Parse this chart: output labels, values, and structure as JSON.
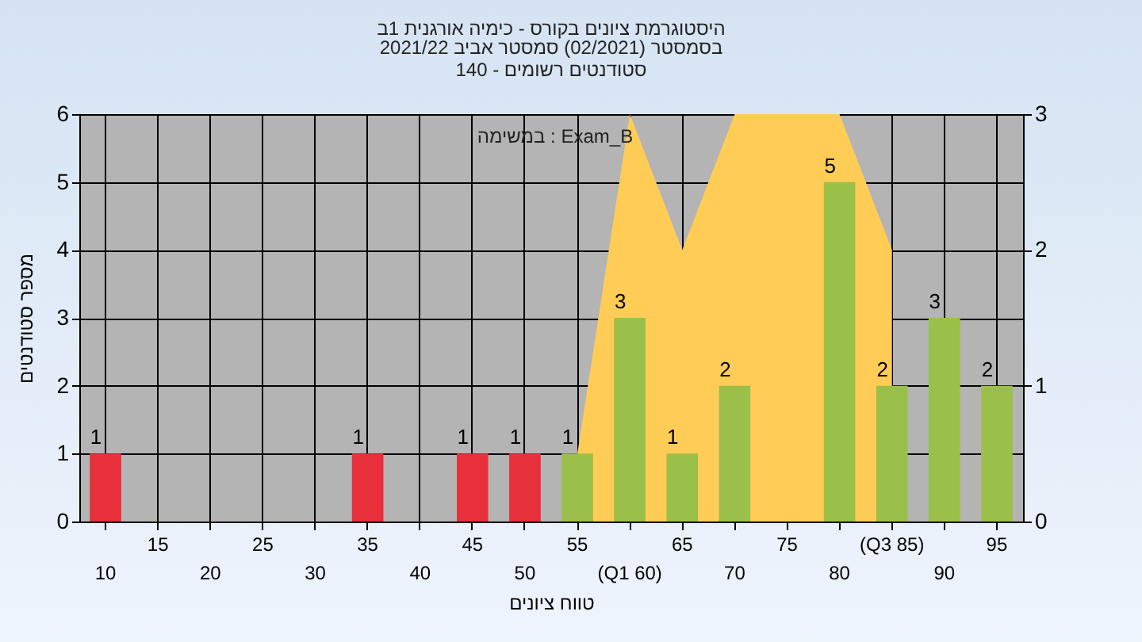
{
  "chart_data": {
    "type": "bar",
    "title": "היסטוגרמת ציונים בקורס - כימיה אורגנית 1ב",
    "subtitle": "בסמסטר  (02/2021)  סמסטר אביב 2021/22\nסטודנטים רשומים - 140",
    "xlabel": "טווח ציונים",
    "ylabel": "מספר סטודנטים",
    "annotations": [
      "במשימה : Exam_B"
    ],
    "categories": [
      "10",
      "15",
      "20",
      "25",
      "30",
      "35",
      "40",
      "45",
      "50",
      "55",
      "(Q1 60)",
      "65",
      "70",
      "75",
      "80",
      "(Q3 85)",
      "90",
      "95"
    ],
    "series": [
      {
        "type": "area",
        "axis": "y2",
        "color": "#ffcc55",
        "values": [
          null,
          null,
          null,
          null,
          null,
          null,
          null,
          null,
          null,
          0.5,
          3,
          2,
          3,
          3,
          3,
          2,
          null,
          null
        ]
      },
      {
        "type": "bar",
        "colors": [
          "#e8303a",
          "#e8303a",
          "#e8303a",
          "#e8303a",
          "#e8303a",
          "#e8303a",
          "#e8303a",
          "#e8303a",
          "#e8303a",
          "#9bc04a",
          "#9bc04a",
          "#9bc04a",
          "#9bc04a",
          "#9bc04a",
          "#9bc04a",
          "#9bc04a",
          "#9bc04a",
          "#9bc04a"
        ],
        "values": [
          1,
          0,
          0,
          0,
          0,
          1,
          0,
          1,
          1,
          1,
          3,
          1,
          2,
          0,
          5,
          2,
          3,
          2
        ],
        "value_labels": [
          "1",
          null,
          null,
          null,
          null,
          "1",
          null,
          "1",
          "1",
          "1",
          "3",
          "1",
          "2",
          null,
          "5",
          "2",
          "3",
          "2"
        ]
      }
    ],
    "ylim": [
      0,
      6
    ],
    "yticks": [
      0,
      1,
      2,
      3,
      4,
      5,
      6
    ],
    "y2lim": [
      0,
      3
    ],
    "y2ticks": [
      0,
      1,
      2,
      3
    ],
    "grid": true,
    "legend": false
  }
}
